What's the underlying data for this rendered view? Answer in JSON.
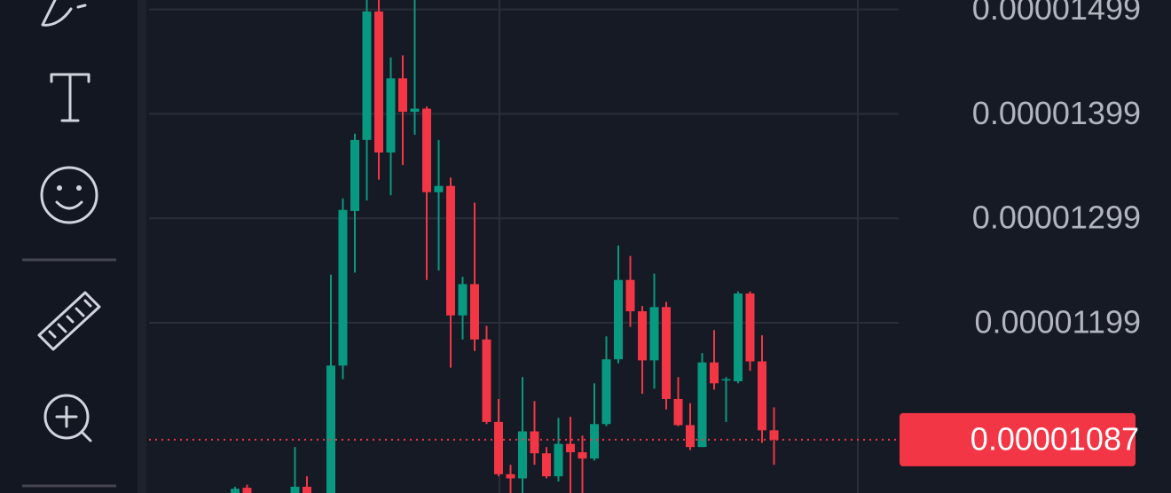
{
  "chart_data": {
    "type": "candlestick",
    "up_color": "#089981",
    "down_color": "#f23645",
    "open": [
      1.034e-05,
      1.041e-05,
      null,
      null,
      null,
      1.034e-05,
      1.042e-05,
      null,
      1.034e-05,
      1.158e-05,
      1.306e-05,
      1.374e-05,
      1.497e-05,
      1.362e-05,
      1.433e-05,
      1.401e-05,
      1.404e-05,
      1.324e-05,
      1.33e-05,
      1.206e-05,
      1.236e-05,
      1.183e-05,
      1.104e-05,
      1.054e-05,
      1.05e-05,
      1.095e-05,
      1.074e-05,
      1.052e-05,
      1.083e-05,
      1.075e-05,
      1.069e-05,
      1.102e-05,
      1.164e-05,
      1.24e-05,
      1.21e-05,
      1.163e-05,
      1.214e-05,
      1.126e-05,
      1.101e-05,
      1.08e-05,
      1.161e-05,
      1.144e-05,
      1.143e-05,
      1.227e-05,
      1.162e-05,
      1.096e-05
    ],
    "high": [
      1.042e-05,
      1.044e-05,
      null,
      null,
      null,
      1.08e-05,
      1.052e-05,
      null,
      1.245e-05,
      1.318e-05,
      1.38e-05,
      1.515e-05,
      1.515e-05,
      1.453e-05,
      1.455e-05,
      1.515e-05,
      1.406e-05,
      1.374e-05,
      1.338e-05,
      1.243e-05,
      1.314e-05,
      1.196e-05,
      1.126e-05,
      1.063e-05,
      1.147e-05,
      1.124e-05,
      1.08e-05,
      1.108e-05,
      1.109e-05,
      1.091e-05,
      1.141e-05,
      1.186e-05,
      1.273e-05,
      1.263e-05,
      1.215e-05,
      1.246e-05,
      1.219e-05,
      1.147e-05,
      1.122e-05,
      1.17e-05,
      1.192e-05,
      1.147e-05,
      1.229e-05,
      1.229e-05,
      1.187e-05,
      1.118e-05
    ],
    "low": [
      1.03e-05,
      1.03e-05,
      null,
      null,
      null,
      1.03e-05,
      1.03e-05,
      null,
      1.03e-05,
      1.145e-05,
      1.247e-05,
      1.316e-05,
      1.336e-05,
      1.321e-05,
      1.35e-05,
      1.379e-05,
      1.24e-05,
      1.249e-05,
      1.156e-05,
      1.183e-05,
      1.172e-05,
      1.102e-05,
      1.052e-05,
      1.03e-05,
      1.03e-05,
      1.063e-05,
      1.05e-05,
      1.047e-05,
      1.03e-05,
      1.03e-05,
      1.067e-05,
      1.1e-05,
      1.16e-05,
      1.195e-05,
      1.131e-05,
      1.136e-05,
      1.116e-05,
      1.1e-05,
      1.077e-05,
      1.08e-05,
      1.135e-05,
      1.104e-05,
      1.141e-05,
      1.153e-05,
      1.084e-05,
      1.063e-05
    ],
    "close": [
      1.04e-05,
      1.034e-05,
      null,
      null,
      null,
      1.042e-05,
      1.034e-05,
      null,
      1.158e-05,
      1.307e-05,
      1.374e-05,
      1.497e-05,
      1.362e-05,
      1.433e-05,
      1.401e-05,
      1.404e-05,
      1.324e-05,
      1.33e-05,
      1.206e-05,
      1.236e-05,
      1.183e-05,
      1.104e-05,
      1.054e-05,
      1.05e-05,
      1.095e-05,
      1.074e-05,
      1.052e-05,
      1.083e-05,
      1.075e-05,
      1.069e-05,
      1.102e-05,
      1.164e-05,
      1.24e-05,
      1.21e-05,
      1.163e-05,
      1.214e-05,
      1.126e-05,
      1.101e-05,
      1.08e-05,
      1.161e-05,
      1.141e-05,
      1.145e-05,
      1.227e-05,
      1.162e-05,
      1.096e-05,
      1.087e-05
    ],
    "ylim": [
      1.036e-05,
      1.508e-05
    ],
    "yticks": [
      1.499e-05,
      1.399e-05,
      1.299e-05,
      1.199e-05
    ],
    "grid": true,
    "last_price": 1.087e-05
  }
}
